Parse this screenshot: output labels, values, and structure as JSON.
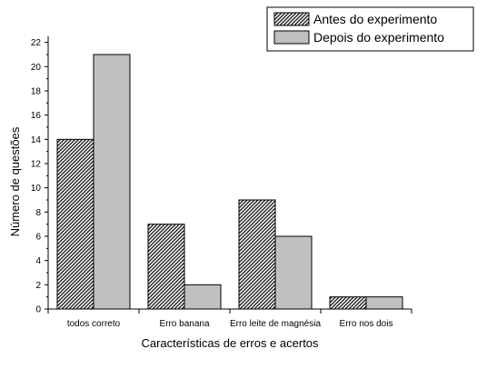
{
  "chart_data": {
    "type": "bar",
    "categories": [
      "todos correto",
      "Erro banana",
      "Erro leite de magnésia",
      "Erro nos dois"
    ],
    "series": [
      {
        "name": "Antes do experimento",
        "values": [
          14,
          7,
          9,
          1
        ],
        "pattern": "hatch",
        "color": "#3c3c3c"
      },
      {
        "name": "Depois do experimento",
        "values": [
          21,
          2,
          6,
          1
        ],
        "pattern": "solid",
        "color": "#c0c0c0"
      }
    ],
    "xlabel": "Características de erros e acertos",
    "ylabel": "Número de questões",
    "ylim": [
      0,
      22.5
    ],
    "yticks": [
      0,
      2,
      4,
      6,
      8,
      10,
      12,
      14,
      16,
      18,
      20,
      22
    ],
    "grid": false,
    "legend_position": "top-right"
  }
}
